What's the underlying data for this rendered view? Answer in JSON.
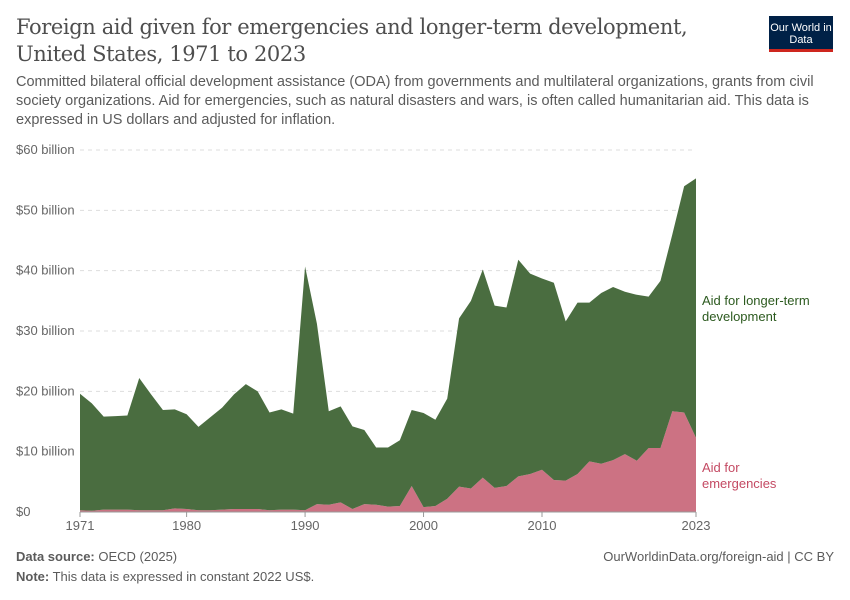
{
  "header": {
    "title": "Foreign aid given for emergencies and longer-term development, United States, 1971 to 2023",
    "subtitle": "Committed bilateral official development assistance (ODA) from governments and multilateral organizations, grants from civil society organizations. Aid for emergencies, such as natural disasters and wars, is often called humanitarian aid. This data is expressed in US dollars and adjusted for inflation.",
    "logo": "Our World in Data"
  },
  "footer": {
    "source_label": "Data source:",
    "source": "OECD (2025)",
    "url": "OurWorldinData.org/foreign-aid | CC BY",
    "note_label": "Note:",
    "note": "This data is expressed in constant 2022 US$."
  },
  "chart_data": {
    "type": "area",
    "stacked": true,
    "grid": "horizontal dashed",
    "legend": "right, inline labels",
    "xlim": [
      1971,
      2023
    ],
    "ylim": [
      0,
      60
    ],
    "x_ticks": [
      "1971",
      "1980",
      "1990",
      "2000",
      "2010",
      "2023"
    ],
    "y_ticks": [
      "$0",
      "$10 billion",
      "$20 billion",
      "$30 billion",
      "$40 billion",
      "$50 billion",
      "$60 billion"
    ],
    "x": [
      1971,
      1972,
      1973,
      1974,
      1975,
      1976,
      1977,
      1978,
      1979,
      1980,
      1981,
      1982,
      1983,
      1984,
      1985,
      1986,
      1987,
      1988,
      1989,
      1990,
      1991,
      1992,
      1993,
      1994,
      1995,
      1996,
      1997,
      1998,
      1999,
      2000,
      2001,
      2002,
      2003,
      2004,
      2005,
      2006,
      2007,
      2008,
      2009,
      2010,
      2011,
      2012,
      2013,
      2014,
      2015,
      2016,
      2017,
      2018,
      2019,
      2020,
      2021,
      2022,
      2023
    ],
    "series": [
      {
        "name": "Aid for emergencies",
        "color": "#cc7283",
        "values": [
          0.3,
          0.2,
          0.4,
          0.4,
          0.4,
          0.3,
          0.3,
          0.3,
          0.6,
          0.5,
          0.3,
          0.3,
          0.4,
          0.5,
          0.5,
          0.5,
          0.3,
          0.4,
          0.4,
          0.3,
          1.3,
          1.2,
          1.6,
          0.5,
          1.3,
          1.2,
          0.9,
          1.0,
          4.3,
          0.8,
          1.0,
          2.2,
          4.2,
          3.9,
          5.7,
          4.0,
          4.3,
          5.9,
          6.3,
          7.0,
          5.3,
          5.2,
          6.3,
          8.4,
          8.0,
          8.6,
          9.6,
          8.5,
          10.6,
          10.6,
          16.7,
          16.5,
          12.3
        ]
      },
      {
        "name": "Aid for longer-term development",
        "color": "#4a6d40",
        "values": [
          19.3,
          17.8,
          15.4,
          15.5,
          15.6,
          21.9,
          19.2,
          16.6,
          16.4,
          15.7,
          13.8,
          15.4,
          16.9,
          19.0,
          20.7,
          19.5,
          16.2,
          16.6,
          15.9,
          40.4,
          29.9,
          15.5,
          15.9,
          13.7,
          12.3,
          9.5,
          9.8,
          10.9,
          12.6,
          15.6,
          14.3,
          16.6,
          27.9,
          31.1,
          34.5,
          30.2,
          29.6,
          35.9,
          33.2,
          31.7,
          32.7,
          26.4,
          28.4,
          26.3,
          28.3,
          28.7,
          26.9,
          27.5,
          25.1,
          27.7,
          29.3,
          37.5,
          43.0
        ]
      }
    ]
  }
}
